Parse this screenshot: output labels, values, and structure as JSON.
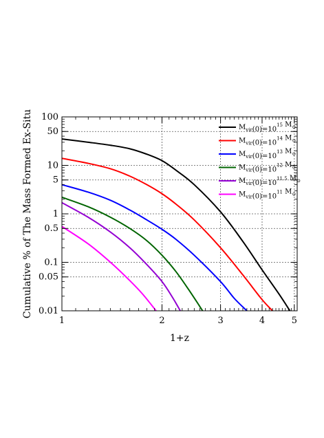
{
  "chart_data": {
    "type": "line",
    "xlabel": "1+z",
    "ylabel": "Cumulative % of The Mass Formed Ex-Situ",
    "x_scale": "log",
    "y_scale": "log",
    "xlim": [
      1,
      5.1
    ],
    "ylim": [
      0.01,
      100
    ],
    "grid": true,
    "legend_position": "top-right",
    "x_ticks": [
      1,
      2,
      3,
      4,
      5
    ],
    "x_tick_labels": [
      "1",
      "2",
      "3",
      "4",
      "5"
    ],
    "y_ticks": [
      0.01,
      0.05,
      0.1,
      0.5,
      1,
      5,
      10,
      50,
      100
    ],
    "y_tick_labels": [
      "0.01",
      "0.05",
      "0.1",
      "0.5",
      "1",
      "5",
      "10",
      "50",
      "100"
    ],
    "series": [
      {
        "name": "M_vir(0)=10^15 M_sun",
        "legend": {
          "pre": "M",
          "sub": "vir",
          "mid": "(0)=10",
          "sup": "15",
          "post": " M",
          "subpost": "⊙"
        },
        "color": "#000000",
        "x": [
          1.0,
          1.2,
          1.4,
          1.6,
          1.8,
          2.0,
          2.2,
          2.5,
          3.0,
          3.5,
          4.0,
          4.5,
          4.85
        ],
        "y": [
          35,
          30,
          26,
          22,
          17,
          12.5,
          8,
          4,
          1.1,
          0.27,
          0.07,
          0.022,
          0.01
        ]
      },
      {
        "name": "M_vir(0)=10^14 M_sun",
        "legend": {
          "pre": "M",
          "sub": "vir",
          "mid": "(0)=10",
          "sup": "14",
          "post": " M",
          "subpost": "⊙"
        },
        "color": "#ff0000",
        "x": [
          1.0,
          1.2,
          1.4,
          1.6,
          1.8,
          2.0,
          2.2,
          2.5,
          3.0,
          3.5,
          4.0,
          4.3
        ],
        "y": [
          14,
          11,
          8.5,
          6,
          4,
          2.6,
          1.6,
          0.75,
          0.2,
          0.055,
          0.017,
          0.01
        ]
      },
      {
        "name": "M_vir(0)=10^13 M_sun",
        "legend": {
          "pre": "M",
          "sub": "vir",
          "mid": "(0)=10",
          "sup": "13",
          "post": " M",
          "subpost": "⊙"
        },
        "color": "#0000ff",
        "x": [
          1.0,
          1.2,
          1.4,
          1.6,
          1.8,
          2.0,
          2.2,
          2.5,
          3.0,
          3.3,
          3.6
        ],
        "y": [
          4,
          2.8,
          1.9,
          1.2,
          0.75,
          0.48,
          0.3,
          0.14,
          0.04,
          0.018,
          0.01
        ]
      },
      {
        "name": "M_vir(0)=10^12 M_sun",
        "legend": {
          "pre": "M",
          "sub": "vir",
          "mid": "(0)=10",
          "sup": "12",
          "post": " M",
          "subpost": "⊙"
        },
        "color": "#006400",
        "x": [
          1.0,
          1.2,
          1.4,
          1.6,
          1.8,
          2.0,
          2.2,
          2.4,
          2.65
        ],
        "y": [
          2.2,
          1.4,
          0.85,
          0.5,
          0.28,
          0.14,
          0.065,
          0.028,
          0.01
        ]
      },
      {
        "name": "M_vir(0)=10^11.5 M_sun",
        "legend": {
          "pre": "M",
          "sub": "vir",
          "mid": "(0)=10",
          "sup": "11.5",
          "post": " M",
          "subpost": "⊙"
        },
        "color": "#9400d3",
        "x": [
          1.0,
          1.2,
          1.4,
          1.6,
          1.8,
          2.0,
          2.15,
          2.27
        ],
        "y": [
          1.7,
          0.85,
          0.42,
          0.2,
          0.09,
          0.04,
          0.019,
          0.01
        ]
      },
      {
        "name": "M_vir(0)=10^11 M_sun",
        "legend": {
          "pre": "M",
          "sub": "vir",
          "mid": "(0)=10",
          "sup": "11",
          "post": " M",
          "subpost": "⊙"
        },
        "color": "#ff00ff",
        "x": [
          1.0,
          1.2,
          1.4,
          1.6,
          1.75,
          1.92
        ],
        "y": [
          0.55,
          0.24,
          0.1,
          0.042,
          0.022,
          0.01
        ]
      }
    ]
  }
}
